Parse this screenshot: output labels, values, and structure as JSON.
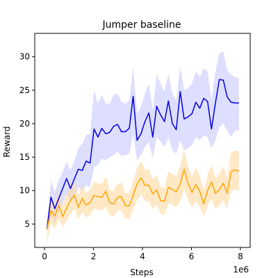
{
  "chart_data": {
    "type": "line",
    "title": "Jumper baseline",
    "xlabel": "Steps",
    "ylabel": "Reward",
    "x_offset_label": "1e6",
    "xlim": [
      -0.4,
      8.4
    ],
    "ylim": [
      1.5,
      33.5
    ],
    "x_ticks": [
      0,
      2,
      4,
      6,
      8
    ],
    "x_tick_labels": [
      "0",
      "2",
      "4",
      "6",
      "8"
    ],
    "y_ticks": [
      5,
      10,
      15,
      20,
      25,
      30
    ],
    "y_tick_labels": [
      "5",
      "10",
      "15",
      "20",
      "25",
      "30"
    ],
    "grid": false,
    "legend": "none",
    "x": [
      0.1,
      0.26,
      0.42,
      0.58,
      0.74,
      0.9,
      1.06,
      1.22,
      1.38,
      1.54,
      1.7,
      1.86,
      2.02,
      2.18,
      2.34,
      2.5,
      2.66,
      2.82,
      2.98,
      3.14,
      3.3,
      3.46,
      3.62,
      3.78,
      3.94,
      4.1,
      4.26,
      4.42,
      4.58,
      4.74,
      4.9,
      5.06,
      5.22,
      5.38,
      5.54,
      5.7,
      5.86,
      6.02,
      6.18,
      6.34,
      6.5,
      6.66,
      6.82,
      6.98,
      7.14,
      7.3,
      7.46,
      7.62,
      7.78,
      7.94
    ],
    "series": [
      {
        "color": "#0000dd",
        "band_color": "#c8c8ff",
        "values": [
          4.3,
          9.0,
          7.3,
          8.8,
          10.3,
          11.8,
          10.3,
          11.8,
          13.2,
          13.0,
          14.4,
          14.1,
          19.2,
          18.0,
          19.3,
          18.5,
          18.7,
          19.6,
          19.9,
          18.8,
          18.8,
          19.3,
          24.1,
          17.5,
          18.5,
          20.3,
          21.6,
          18.0,
          22.6,
          21.3,
          20.3,
          23.4,
          20.0,
          19.1,
          24.8,
          20.7,
          21.0,
          21.5,
          23.2,
          22.3,
          23.8,
          23.3,
          19.2,
          23.1,
          26.6,
          26.5,
          24.0,
          23.2,
          23.1,
          23.1
        ],
        "lower": [
          3.8,
          6.2,
          5.2,
          6.8,
          8.0,
          9.5,
          8.3,
          9.3,
          10.5,
          10.0,
          10.8,
          10.5,
          13.5,
          13.8,
          14.8,
          14.5,
          15.0,
          15.3,
          15.8,
          15.2,
          15.3,
          15.5,
          18.5,
          14.5,
          15.3,
          16.5,
          17.3,
          14.8,
          18.0,
          17.3,
          16.5,
          18.0,
          16.0,
          15.5,
          17.5,
          16.0,
          16.3,
          16.8,
          18.0,
          17.5,
          18.2,
          18.0,
          16.3,
          17.5,
          19.5,
          20.0,
          19.0,
          18.0,
          19.0,
          19.0
        ],
        "upper": [
          4.8,
          11.5,
          9.8,
          11.5,
          12.8,
          14.3,
          13.0,
          14.5,
          16.3,
          17.0,
          18.3,
          18.5,
          25.0,
          23.0,
          24.3,
          23.0,
          23.0,
          24.3,
          24.5,
          23.3,
          23.0,
          23.5,
          28.5,
          21.5,
          22.5,
          24.5,
          26.0,
          22.0,
          27.3,
          26.0,
          24.8,
          27.5,
          24.5,
          23.5,
          28.5,
          25.0,
          25.3,
          26.0,
          27.8,
          27.0,
          28.3,
          27.8,
          23.5,
          27.8,
          30.5,
          30.8,
          28.0,
          27.3,
          27.0,
          26.8
        ]
      },
      {
        "color": "#ffa500",
        "band_color": "#ffd9a0",
        "values": [
          4.2,
          7.0,
          6.2,
          7.8,
          6.1,
          7.4,
          8.5,
          9.3,
          7.5,
          8.8,
          7.8,
          8.2,
          9.3,
          9.1,
          9.0,
          9.9,
          8.2,
          8.0,
          9.0,
          9.1,
          7.7,
          7.7,
          9.3,
          11.0,
          11.9,
          10.8,
          10.8,
          9.5,
          10.1,
          8.5,
          8.4,
          10.5,
          10.2,
          9.8,
          11.0,
          13.2,
          11.1,
          9.7,
          10.9,
          9.9,
          8.0,
          10.0,
          11.3,
          9.6,
          10.1,
          11.1,
          9.6,
          12.8,
          13.1,
          12.9
        ],
        "lower": [
          2.0,
          5.2,
          4.2,
          5.8,
          4.5,
          5.5,
          6.5,
          7.3,
          5.8,
          6.8,
          6.0,
          6.3,
          7.3,
          7.1,
          7.0,
          7.6,
          6.3,
          6.1,
          7.0,
          7.0,
          5.8,
          5.8,
          7.2,
          8.6,
          9.4,
          8.5,
          8.4,
          7.3,
          7.9,
          6.5,
          6.4,
          8.1,
          7.9,
          7.5,
          8.4,
          10.2,
          8.6,
          7.4,
          8.4,
          7.6,
          6.1,
          7.7,
          8.7,
          7.3,
          7.7,
          8.6,
          7.3,
          9.9,
          10.2,
          10.0
        ],
        "upper": [
          5.5,
          8.8,
          8.3,
          9.8,
          7.7,
          9.3,
          10.5,
          11.3,
          9.2,
          10.8,
          9.6,
          10.1,
          11.3,
          11.1,
          11.0,
          12.2,
          10.1,
          9.9,
          11.0,
          11.2,
          9.6,
          9.6,
          11.4,
          13.4,
          14.4,
          13.1,
          13.2,
          11.7,
          12.3,
          10.5,
          10.4,
          12.9,
          12.5,
          12.1,
          13.6,
          16.2,
          13.6,
          12.0,
          13.4,
          12.2,
          9.9,
          12.3,
          13.9,
          11.9,
          12.5,
          13.6,
          11.9,
          15.7,
          16.0,
          15.8
        ]
      }
    ]
  }
}
